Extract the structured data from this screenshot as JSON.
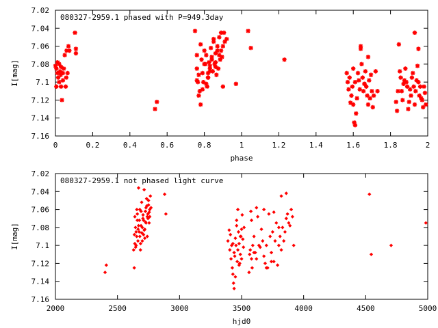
{
  "chart_data": [
    {
      "type": "scatter",
      "title": "080327-2959.1 phased with P=949.3day",
      "xlabel": "phase",
      "ylabel": "I[mag]",
      "xlim": [
        0,
        2
      ],
      "ylim": [
        7.02,
        7.16
      ],
      "y_inverted": true,
      "x_ticks": [
        "0",
        "0.2",
        "0.4",
        "0.6",
        "0.8",
        "1",
        "1.2",
        "1.4",
        "1.6",
        "1.8",
        "2"
      ],
      "y_ticks": [
        "7.02",
        "7.04",
        "7.06",
        "7.08",
        "7.1",
        "7.12",
        "7.14",
        "7.16"
      ],
      "marker_color": "#ff0000",
      "marker": "star",
      "series": [
        {
          "x": [
            0.0,
            0.005,
            0.01,
            0.012,
            0.015,
            0.02,
            0.02,
            0.025,
            0.028,
            0.03,
            0.03,
            0.035,
            0.04,
            0.04,
            0.045,
            0.05,
            0.055,
            0.058,
            0.06,
            0.065,
            0.07,
            0.075,
            0.105,
            0.11,
            0.11,
            0.005,
            0.535,
            0.545,
            1.05,
            1.035,
            1.23,
            0.75,
            0.76,
            0.76,
            0.765,
            0.77,
            0.775,
            0.78,
            0.785,
            0.79,
            0.795,
            0.8,
            0.805,
            0.81,
            0.815,
            0.82,
            0.825,
            0.83,
            0.835,
            0.84,
            0.845,
            0.85,
            0.855,
            0.86,
            0.865,
            0.87,
            0.875,
            0.88,
            0.885,
            0.89,
            0.895,
            0.9,
            0.905,
            0.91,
            0.78,
            0.8,
            0.82,
            0.84,
            0.86,
            0.88,
            0.76,
            0.79,
            0.81,
            0.83,
            0.85,
            0.87,
            0.89,
            0.9,
            0.92,
            0.97,
            0.77,
            0.82,
            0.83,
            0.86,
            1.565,
            1.57,
            1.575,
            1.58,
            1.585,
            1.59,
            1.595,
            1.6,
            1.605,
            1.61,
            1.615,
            1.62,
            1.625,
            1.63,
            1.635,
            1.64,
            1.645,
            1.65,
            1.655,
            1.66,
            1.665,
            1.67,
            1.675,
            1.68,
            1.685,
            1.69,
            1.695,
            1.7,
            1.705,
            1.71,
            1.6,
            1.61,
            1.64,
            1.66,
            1.68,
            1.72,
            1.73,
            1.83,
            1.835,
            1.84,
            1.845,
            1.85,
            1.855,
            1.86,
            1.865,
            1.87,
            1.875,
            1.88,
            1.885,
            1.89,
            1.895,
            1.9,
            1.905,
            1.91,
            1.915,
            1.92,
            1.925,
            1.93,
            1.935,
            1.94,
            1.945,
            1.95,
            1.955,
            1.96,
            1.965,
            1.97,
            1.975,
            1.98,
            1.99,
            1.985,
            1.95,
            1.93
          ],
          "y": [
            7.082,
            7.085,
            7.09,
            7.078,
            7.095,
            7.08,
            7.1,
            7.088,
            7.092,
            7.105,
            7.083,
            7.12,
            7.098,
            7.09,
            7.085,
            7.07,
            7.105,
            7.095,
            7.065,
            7.09,
            7.06,
            7.065,
            7.045,
            7.068,
            7.063,
            7.105,
            7.13,
            7.122,
            7.062,
            7.043,
            7.075,
            7.043,
            7.085,
            7.07,
            7.1,
            7.092,
            7.11,
            7.125,
            7.075,
            7.09,
            7.1,
            7.065,
            7.08,
            7.07,
            7.105,
            7.09,
            7.078,
            7.085,
            7.062,
            7.072,
            7.088,
            7.055,
            7.08,
            7.068,
            7.092,
            7.06,
            7.085,
            7.05,
            7.075,
            7.065,
            7.072,
            7.06,
            7.045,
            7.055,
            7.058,
            7.08,
            7.095,
            7.075,
            7.083,
            7.07,
            7.098,
            7.108,
            7.102,
            7.088,
            7.052,
            7.065,
            7.045,
            7.105,
            7.052,
            7.102,
            7.115,
            7.095,
            7.082,
            7.078,
            7.09,
            7.1,
            7.108,
            7.095,
            7.123,
            7.115,
            7.105,
            7.125,
            7.145,
            7.148,
            7.135,
            7.118,
            7.09,
            7.098,
            7.108,
            7.063,
            7.08,
            7.095,
            7.11,
            7.102,
            7.088,
            7.105,
            7.115,
            7.125,
            7.098,
            7.118,
            7.092,
            7.11,
            7.128,
            7.115,
            7.085,
            7.1,
            7.06,
            7.102,
            7.072,
            7.088,
            7.11,
            7.122,
            7.132,
            7.11,
            7.058,
            7.088,
            7.095,
            7.11,
            7.12,
            7.102,
            7.098,
            7.085,
            7.1,
            7.105,
            7.13,
            7.122,
            7.108,
            7.115,
            7.095,
            7.09,
            7.105,
            7.125,
            7.11,
            7.098,
            7.082,
            7.1,
            7.115,
            7.105,
            7.118,
            7.12,
            7.128,
            7.105,
            7.125,
            7.112,
            7.063,
            7.045
          ]
        }
      ]
    },
    {
      "type": "scatter",
      "title": "080327-2959.1 not phased light curve",
      "xlabel": "hjd0",
      "ylabel": "I[mag]",
      "xlim": [
        2000,
        5000
      ],
      "ylim": [
        7.02,
        7.16
      ],
      "y_inverted": true,
      "x_ticks": [
        "2000",
        "2500",
        "3000",
        "3500",
        "4000",
        "4500",
        "5000"
      ],
      "y_ticks": [
        "7.02",
        "7.04",
        "7.06",
        "7.08",
        "7.1",
        "7.12",
        "7.14",
        "7.16"
      ],
      "marker_color": "#ff0000",
      "marker": "diamond",
      "series": [
        {
          "x": [
            2400,
            2410,
            2880,
            2890,
            4530,
            4545,
            4705,
            4985,
            2630,
            2635,
            2640,
            2645,
            2650,
            2655,
            2660,
            2665,
            2670,
            2675,
            2680,
            2685,
            2690,
            2695,
            2700,
            2705,
            2710,
            2715,
            2720,
            2725,
            2730,
            2735,
            2740,
            2745,
            2750,
            2755,
            2760,
            2765,
            2640,
            2650,
            2660,
            2670,
            2680,
            2690,
            2700,
            2710,
            2720,
            2730,
            2740,
            2750,
            2760,
            2770,
            2636,
            2646,
            2656,
            2666,
            2676,
            2686,
            2696,
            2706,
            2716,
            2726,
            2736,
            2746,
            2756,
            3390,
            3400,
            3405,
            3410,
            3415,
            3420,
            3425,
            3430,
            3435,
            3440,
            3445,
            3450,
            3455,
            3460,
            3465,
            3470,
            3475,
            3480,
            3485,
            3490,
            3495,
            3500,
            3505,
            3510,
            3515,
            3520,
            3440,
            3450,
            3460,
            3480,
            3500,
            3430,
            3470,
            3490,
            3560,
            3565,
            3570,
            3575,
            3580,
            3585,
            3590,
            3600,
            3610,
            3620,
            3630,
            3640,
            3650,
            3660,
            3670,
            3680,
            3690,
            3700,
            3710,
            3720,
            3730,
            3740,
            3750,
            3760,
            3770,
            3780,
            3790,
            3800,
            3810,
            3820,
            3830,
            3840,
            3850,
            3860,
            3870,
            3880,
            3890,
            3900,
            3910,
            3920,
            3620,
            3680,
            3740,
            3800,
            3860,
            3580,
            3600,
            3700,
            3760,
            3820
          ],
          "y": [
            7.13,
            7.122,
            7.043,
            7.065,
            7.043,
            7.11,
            7.1,
            7.075,
            7.105,
            7.125,
            7.068,
            7.08,
            7.1,
            7.09,
            7.072,
            7.095,
            7.036,
            7.085,
            7.06,
            7.105,
            7.078,
            7.052,
            7.095,
            7.07,
            7.088,
            7.038,
            7.082,
            7.062,
            7.075,
            7.048,
            7.09,
            7.065,
            7.055,
            7.075,
            7.06,
            7.045,
            7.098,
            7.085,
            7.065,
            7.078,
            7.09,
            7.062,
            7.08,
            7.072,
            7.092,
            7.058,
            7.068,
            7.05,
            7.068,
            7.058,
            7.088,
            7.102,
            7.06,
            7.082,
            7.072,
            7.098,
            7.086,
            7.066,
            7.083,
            7.074,
            7.056,
            7.07,
            7.063,
            7.095,
            7.083,
            7.105,
            7.088,
            7.115,
            7.1,
            7.125,
            7.098,
            7.142,
            7.148,
            7.112,
            7.092,
            7.1,
            7.078,
            7.118,
            7.105,
            7.085,
            7.098,
            7.12,
            7.11,
            7.09,
            7.082,
            7.066,
            7.093,
            7.102,
            7.08,
            7.108,
            7.135,
            7.072,
            7.122,
            7.115,
            7.132,
            7.06,
            7.09,
            7.13,
            7.11,
            7.105,
            7.062,
            7.115,
            7.125,
            7.1,
            7.09,
            7.108,
            7.115,
            7.068,
            7.1,
            7.102,
            7.082,
            7.095,
            7.112,
            7.12,
            7.1,
            7.125,
            7.065,
            7.09,
            7.108,
            7.085,
            7.118,
            7.095,
            7.075,
            7.122,
            7.1,
            7.09,
            7.105,
            7.08,
            7.095,
            7.085,
            7.07,
            7.065,
            7.075,
            7.078,
            7.06,
            7.068,
            7.1,
            7.058,
            7.06,
            7.118,
            7.08,
            7.042,
            7.072,
            7.108,
            7.125,
            7.063,
            7.045
          ]
        }
      ]
    }
  ]
}
